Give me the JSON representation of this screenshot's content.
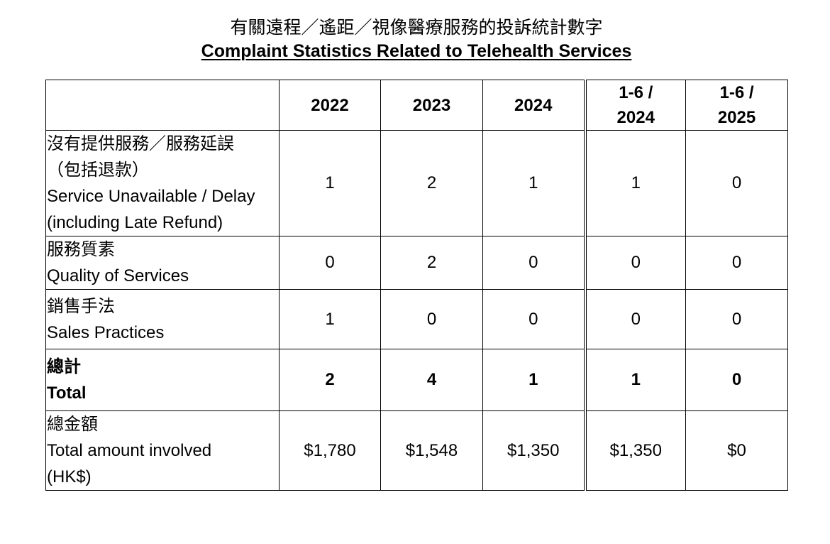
{
  "title_zh": "有關遠程／遙距／視像醫療服務的投訴統計數字",
  "title_en": "Complaint Statistics Related to Telehealth Services",
  "columns": [
    "2022",
    "2023",
    "2024",
    "1-6 / 2024",
    "1-6 / 2025"
  ],
  "column_lines": [
    [
      "2022"
    ],
    [
      "2023"
    ],
    [
      "2024"
    ],
    [
      "1-6 /",
      "2024"
    ],
    [
      "1-6 /",
      "2025"
    ]
  ],
  "rows": [
    {
      "label_zh": [
        "沒有提供服務／服務延誤",
        "（包括退款）"
      ],
      "label_en": [
        "Service Unavailable / Delay",
        "(including Late Refund)"
      ],
      "values": [
        "1",
        "2",
        "1",
        "1",
        "0"
      ]
    },
    {
      "label_zh": [
        "服務質素"
      ],
      "label_en": [
        "Quality of Services"
      ],
      "values": [
        "0",
        "2",
        "0",
        "0",
        "0"
      ]
    },
    {
      "label_zh": [
        "銷售手法"
      ],
      "label_en": [
        "Sales Practices"
      ],
      "values": [
        "1",
        "0",
        "0",
        "0",
        "0"
      ]
    },
    {
      "label_zh": [
        "總計"
      ],
      "label_en": [
        "Total"
      ],
      "values": [
        "2",
        "4",
        "1",
        "1",
        "0"
      ],
      "bold": true
    },
    {
      "label_zh": [
        "總金額"
      ],
      "label_en": [
        "Total amount involved",
        "(HK$)"
      ],
      "values": [
        "$1,780",
        "$1,548",
        "$1,350",
        "$1,350",
        "$0"
      ]
    }
  ]
}
